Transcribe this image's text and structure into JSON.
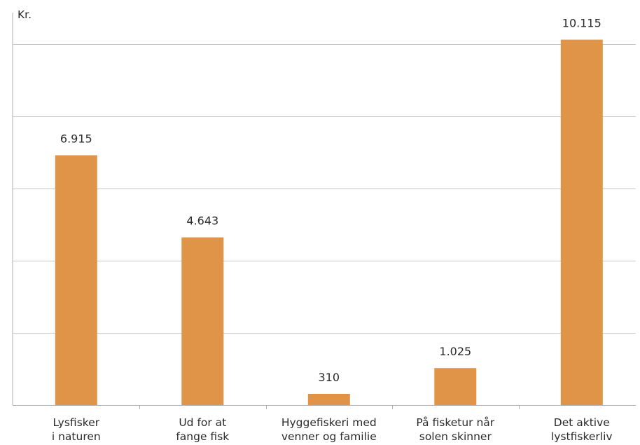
{
  "chart_data": {
    "type": "bar",
    "unit_label": "Kr.",
    "categories": [
      [
        "Lysfisker",
        "i naturen"
      ],
      [
        "Ud for at",
        "fange fisk"
      ],
      [
        "Hyggefiskeri med",
        "venner og familie"
      ],
      [
        "På fisketur når",
        "solen skinner"
      ],
      [
        "Det aktive",
        "lystfiskerliv"
      ]
    ],
    "values": [
      6915,
      4643,
      310,
      1025,
      10115
    ],
    "data_labels": [
      "6.915",
      "4.643",
      "310",
      "1.025",
      "10.115"
    ],
    "ylim": [
      0,
      10000
    ],
    "ytick_step": 2000,
    "grid": true,
    "legend": "none",
    "colors": {
      "bar": "#E09448",
      "grid": "#c8c8c8",
      "axis": "#b0b0b0",
      "text": "#2a2a2a"
    }
  }
}
